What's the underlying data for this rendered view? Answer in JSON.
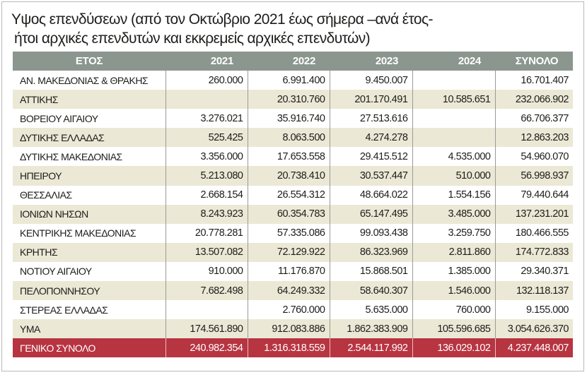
{
  "title": {
    "line1": "Υψος επενδύσεων (από τον Οκτώβριο 2021 έως σήμερα –ανά έτος-",
    "line2": "ήτοι αρχικές επενδυτών και εκκρεμείς αρχικές επενδυτών)"
  },
  "colors": {
    "header": "#8b968f",
    "stripe": "#ebe8d5",
    "total": "#b73441"
  },
  "table": {
    "headers": [
      "ΕΤΟΣ",
      "2021",
      "2022",
      "2023",
      "2024",
      "ΣΥΝΟΛΟ"
    ],
    "rows": [
      [
        "ΑΝ. ΜΑΚΕΔΟΝΙΑΣ & ΘΡΑΚΗΣ",
        "260.000",
        "6.991.400",
        "9.450.007",
        "",
        "16.701.407"
      ],
      [
        "ΑΤΤΙΚΗΣ",
        "",
        "20.310.760",
        "201.170.491",
        "10.585.651",
        "232.066.902"
      ],
      [
        "ΒΟΡΕΙΟΥ ΑΙΓΑΙΟΥ",
        "3.276.021",
        "35.916.740",
        "27.513.616",
        "",
        "66.706.377"
      ],
      [
        "ΔΥΤΙΚΗΣ ΕΛΛΑΔΑΣ",
        "525.425",
        "8.063.500",
        "4.274.278",
        "",
        "12.863.203"
      ],
      [
        "ΔΥΤΙΚΗΣ ΜΑΚΕΔΟΝΙΑΣ",
        "3.356.000",
        "17.653.558",
        "29.415.512",
        "4.535.000",
        "54.960.070"
      ],
      [
        "ΗΠΕΙΡΟΥ",
        "5.213.080",
        "20.738.410",
        "30.537.447",
        "510.000",
        "56.998.937"
      ],
      [
        "ΘΕΣΣΑΛΙΑΣ",
        "2.668.154",
        "26.554.312",
        "48.664.022",
        "1.554.156",
        "79.440.644"
      ],
      [
        "ΙΟΝΙΩΝ ΝΗΣΩΝ",
        "8.243.923",
        "60.354.783",
        "65.147.495",
        "3.485.000",
        "137.231.201"
      ],
      [
        "ΚΕΝΤΡΙΚΗΣ ΜΑΚΕΔΟΝΙΑΣ",
        "20.778.281",
        "57.335.086",
        "99.093.438",
        "3.259.750",
        "180.466.555"
      ],
      [
        "ΚΡΗΤΗΣ",
        "13.507.082",
        "72.129.922",
        "86.323.969",
        "2.811.860",
        "174.772.833"
      ],
      [
        "ΝΟΤΙΟΥ ΑΙΓΑΙΟΥ",
        "910.000",
        "11.176.870",
        "15.868.501",
        "1.385.000",
        "29.340.371"
      ],
      [
        "ΠΕΛΟΠΟΝΝΗΣΟΥ",
        "7.682.498",
        "64.249.332",
        "58.640.307",
        "1.546.000",
        "132.118.137"
      ],
      [
        "ΣΤΕΡΕΑΣ ΕΛΛΑΔΑΣ",
        "",
        "2.760.000",
        "5.635.000",
        "760.000",
        "9.155.000"
      ],
      [
        "ΥΜΑ",
        "174.561.890",
        "912.083.886",
        "1.862.383.909",
        "105.596.685",
        "3.054.626.370"
      ]
    ],
    "total": [
      "ΓΕΝΙΚΟ ΣΥΝΟΛΟ",
      "240.982.354",
      "1.316.318.559",
      "2.544.117.992",
      "136.029.102",
      "4.237.448.007"
    ]
  }
}
